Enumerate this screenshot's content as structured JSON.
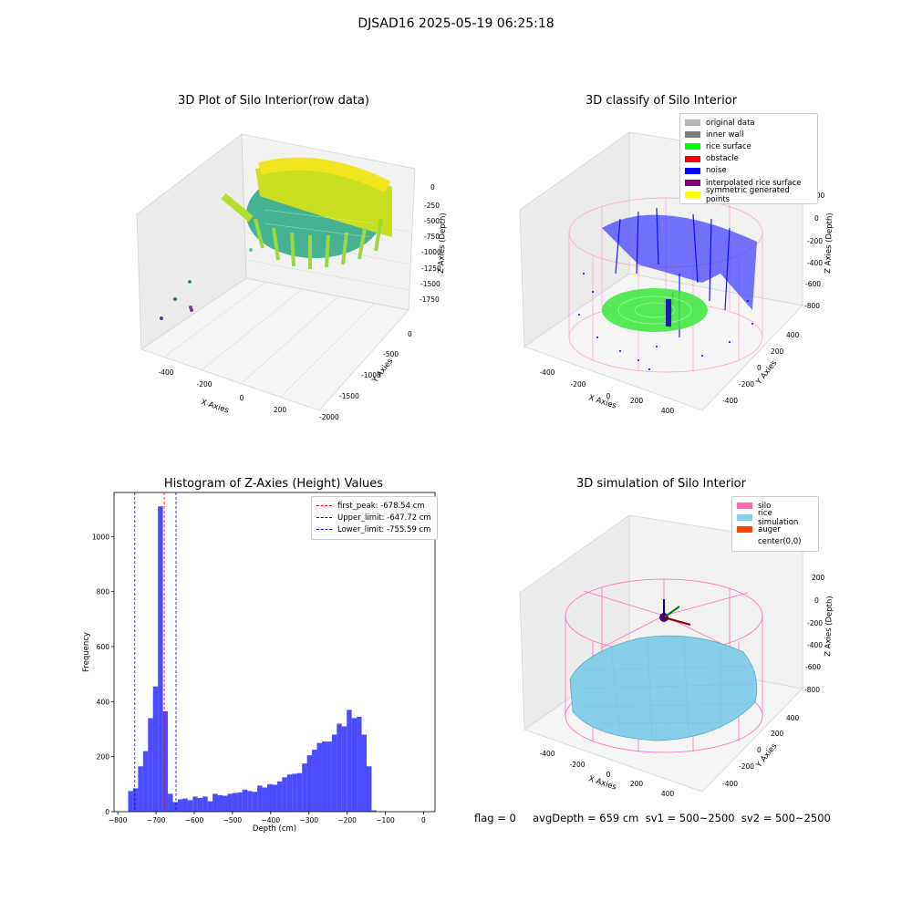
{
  "figure": {
    "suptitle": "DJSAD16 2025-05-19 06:25:18",
    "footer": "flag = 0     avgDepth = 659 cm  sv1 = 500~2500  sv2 = 500~2500"
  },
  "panels": {
    "raw": {
      "title": "3D Plot of Silo Interior(row data)",
      "xlabel": "X Axies",
      "ylabel": "Y Axies",
      "zlabel": "Z Axies (Depth)",
      "xticks": [
        "-400",
        "-200",
        "0",
        "200"
      ],
      "yticks": [
        "0",
        "-500",
        "-1000",
        "-1500",
        "-2000"
      ],
      "zticks": [
        "0",
        "-250",
        "-500",
        "-750",
        "-1000",
        "-1250",
        "-1500",
        "-1750"
      ]
    },
    "classify": {
      "title": "3D classify of Silo Interior",
      "xlabel": "X Axies",
      "ylabel": "Y Axies",
      "zlabel": "Z Axies (Depth)",
      "xticks": [
        "-400",
        "-200",
        "0",
        "200",
        "400"
      ],
      "yticks": [
        "400",
        "200",
        "0",
        "-200",
        "-400"
      ],
      "zticks": [
        "200",
        "0",
        "-200",
        "-400",
        "-600",
        "-800"
      ],
      "legend": [
        {
          "label": "original data",
          "color": "#b4b4b4"
        },
        {
          "label": "inner wall",
          "color": "#808080"
        },
        {
          "label": "rice surface",
          "color": "#00ff00"
        },
        {
          "label": "obstacle",
          "color": "#ff0000"
        },
        {
          "label": "noise",
          "color": "#0000ff"
        },
        {
          "label": "interpolated rice surface",
          "color": "#800080"
        },
        {
          "label": "symmetric generated points",
          "color": "#ffff00"
        }
      ]
    },
    "simulation": {
      "title": "3D simulation of Silo Interior",
      "xlabel": "X Axies",
      "ylabel": "Y Axies",
      "zlabel": "Z Axies (Depth)",
      "xticks": [
        "-400",
        "-200",
        "0",
        "200",
        "400"
      ],
      "yticks": [
        "400",
        "200",
        "0",
        "-200",
        "-400"
      ],
      "zticks": [
        "200",
        "0",
        "-200",
        "-400",
        "-600",
        "-800"
      ],
      "legend": [
        {
          "label": "silo",
          "color": "#ff69b4"
        },
        {
          "label": "rice simulation",
          "color": "#87ceeb"
        },
        {
          "label": "auger",
          "color": "#ff4500"
        },
        {
          "label": "center(0,0)",
          "color": "#ffffff"
        }
      ]
    }
  },
  "chart_data": {
    "type": "bar",
    "title": "Histogram of Z-Axies (Height) Values",
    "xlabel": "Depth (cm)",
    "ylabel": "Frequency",
    "xlim": [
      -810,
      30
    ],
    "ylim": [
      0,
      1160
    ],
    "xticks": [
      -800,
      -700,
      -600,
      -500,
      -400,
      -300,
      -200,
      -100,
      0
    ],
    "yticks": [
      0,
      200,
      400,
      600,
      800,
      1000
    ],
    "bar_color": "#0000ff",
    "bin_start": -773,
    "bin_width": 13,
    "values": [
      75,
      85,
      165,
      220,
      340,
      455,
      1110,
      365,
      65,
      35,
      45,
      48,
      42,
      55,
      50,
      55,
      38,
      65,
      60,
      58,
      65,
      68,
      70,
      80,
      75,
      72,
      95,
      88,
      100,
      98,
      110,
      125,
      135,
      138,
      140,
      175,
      205,
      225,
      250,
      255,
      255,
      280,
      320,
      310,
      370,
      340,
      345,
      280,
      165,
      5
    ],
    "vlines": [
      {
        "label": "first_peak: -678.54 cm",
        "x": -678.54,
        "color": "#ff0000"
      },
      {
        "label": "Upper_limit: -647.72 cm",
        "x": -647.72,
        "color": "#0000cc"
      },
      {
        "label": "Lower_limit: -755.59 cm",
        "x": -755.59,
        "color": "#0000cc"
      }
    ]
  }
}
